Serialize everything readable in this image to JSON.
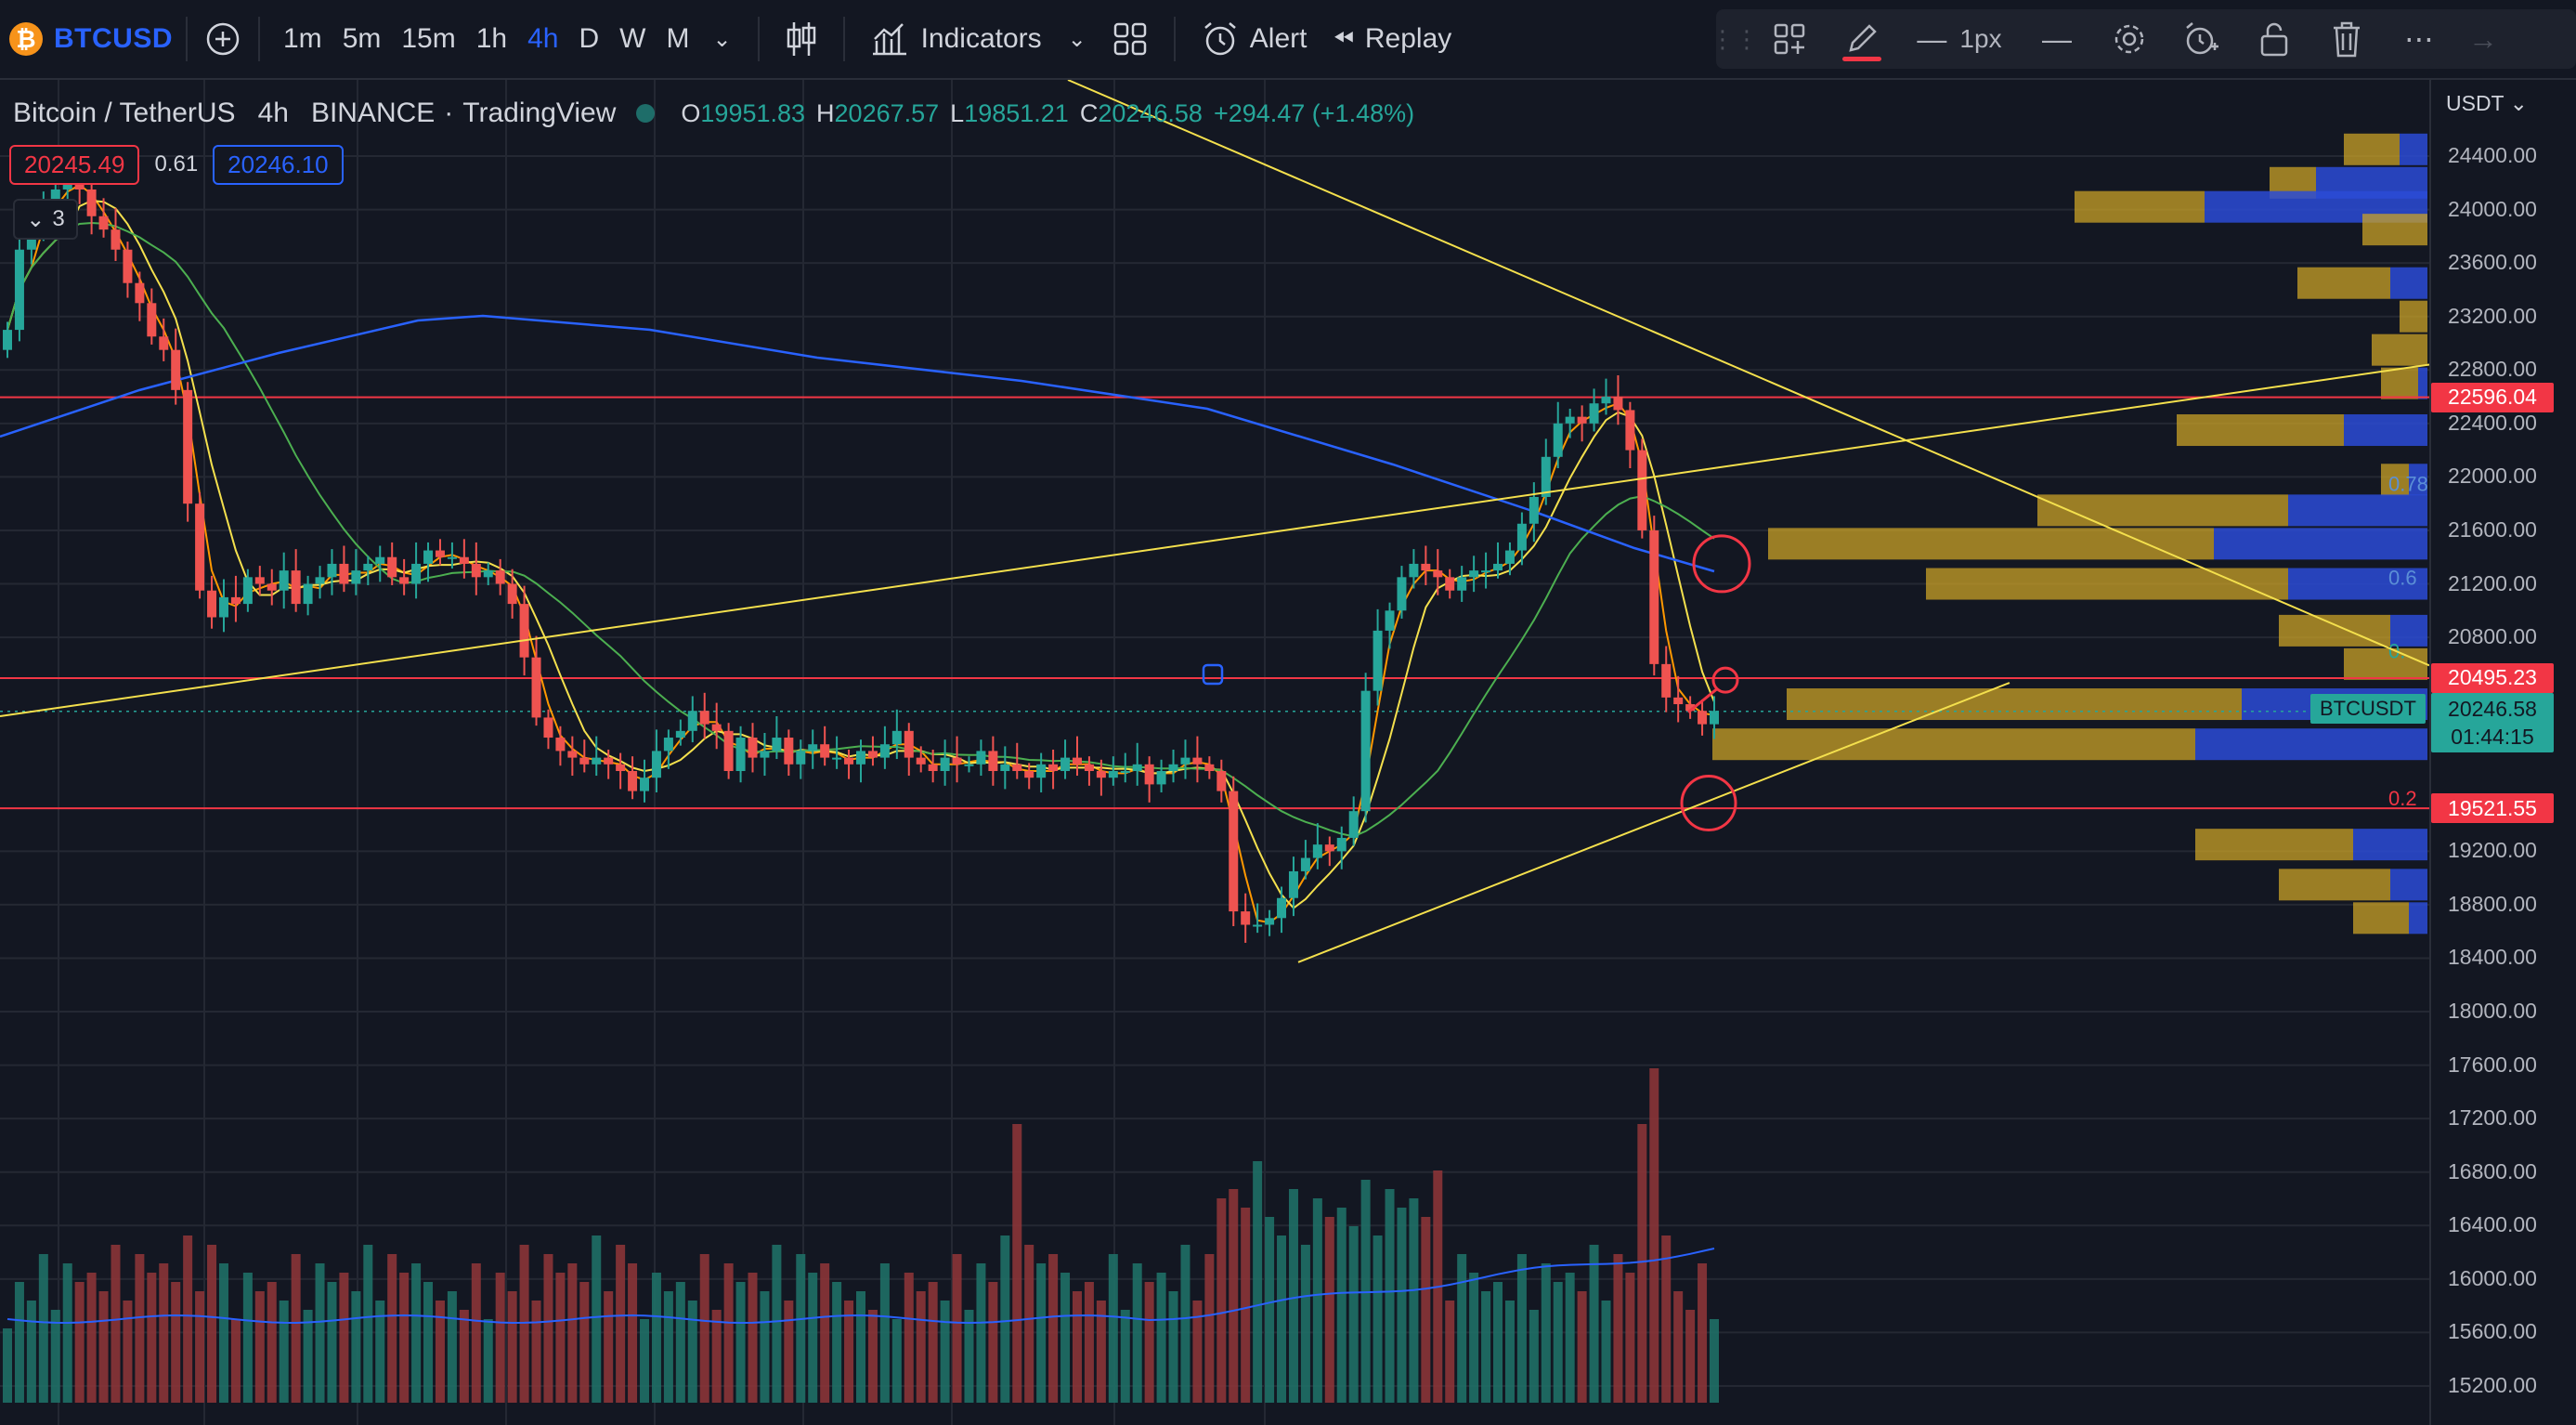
{
  "toolbar": {
    "symbol": "BTCUSD",
    "timeframes": [
      "1m",
      "5m",
      "15m",
      "1h",
      "4h",
      "D",
      "W",
      "M"
    ],
    "active_timeframe": "4h",
    "indicators_label": "Indicators",
    "alert_label": "Alert",
    "replay_label": "Replay",
    "line_width_label": "1px"
  },
  "legend": {
    "title": "Bitcoin / TetherUS",
    "interval": "4h",
    "exchange": "BINANCE",
    "source": "TradingView",
    "open_label": "O",
    "open": "19951.83",
    "high_label": "H",
    "high": "20267.57",
    "low_label": "L",
    "low": "19851.21",
    "close_label": "C",
    "close": "20246.58",
    "change": "+294.47 (+1.48%)"
  },
  "pricebox": {
    "sell": "20245.49",
    "spread": "0.61",
    "buy": "20246.10"
  },
  "collapse": {
    "count": "3",
    "icon": "chevron-down-icon"
  },
  "scale": {
    "currency": "USDT",
    "ticks": [
      "24400.00",
      "24000.00",
      "23600.00",
      "23200.00",
      "22800.00",
      "22400.00",
      "22000.00",
      "21600.00",
      "21200.00",
      "20800.00",
      "19200.00",
      "18800.00",
      "18400.00",
      "18000.00",
      "17600.00",
      "17200.00",
      "16800.00",
      "16400.00",
      "16000.00",
      "15600.00",
      "15200.00"
    ],
    "levels": [
      "22596.04",
      "20495.23",
      "19521.55"
    ],
    "current_price": "20246.58",
    "countdown": "01:44:15",
    "symbol_tag": "BTCUSDT",
    "fib_labels": [
      "0.78",
      "0.6",
      "0.",
      "0.2"
    ]
  },
  "colors": {
    "background": "#131722",
    "up": "#26a69a",
    "down": "#ef5350",
    "level": "#f23645",
    "trendline": "#f4e04d",
    "ma_long": "#2962ff",
    "ma_mid": "#4caf50",
    "ma_fast": "#f4e04d",
    "ma_faster": "#ff9800",
    "volume_profile_up": "#2b4bd6",
    "volume_profile_down": "#c9a227"
  },
  "chart_data": {
    "type": "candlestick",
    "symbol": "BTCUSDT",
    "interval": "4h",
    "ylim": [
      15000,
      24800
    ],
    "levels": [
      22596.04,
      20495.23,
      19521.55
    ],
    "candles_close": [
      23100,
      23700,
      23900,
      24000,
      24150,
      24250,
      24150,
      23950,
      23850,
      23700,
      23450,
      23300,
      23050,
      22950,
      22650,
      21800,
      21150,
      20950,
      21100,
      21050,
      21250,
      21200,
      21150,
      21300,
      21050,
      21200,
      21250,
      21350,
      21200,
      21300,
      21350,
      21400,
      21250,
      21200,
      21350,
      21450,
      21400,
      21400,
      21350,
      21250,
      21300,
      21200,
      21050,
      20650,
      20200,
      20050,
      19950,
      19900,
      19850,
      19900,
      19850,
      19800,
      19650,
      19750,
      19950,
      20050,
      20100,
      20250,
      20150,
      20100,
      19800,
      20050,
      19900,
      19950,
      20050,
      19850,
      19950,
      20000,
      19900,
      19900,
      19850,
      19950,
      19900,
      20000,
      20100,
      19900,
      19850,
      19800,
      19900,
      19850,
      19850,
      19950,
      19800,
      19850,
      19800,
      19750,
      19850,
      19800,
      19900,
      19850,
      19800,
      19750,
      19800,
      19800,
      19850,
      19700,
      19800,
      19850,
      19900,
      19850,
      19800,
      19650,
      18750,
      18650,
      18650,
      18700,
      18850,
      19050,
      19150,
      19250,
      19200,
      19300,
      19500,
      20400,
      20850,
      21000,
      21250,
      21350,
      21300,
      21250,
      21150,
      21250,
      21300,
      21300,
      21350,
      21450,
      21650,
      21850,
      22150,
      22400,
      22450,
      22400,
      22550,
      22600,
      22500,
      22200,
      21600,
      20600,
      20350,
      20300,
      20250,
      20150,
      20250
    ],
    "volume_ma_note": "volume histogram with moving average"
  }
}
